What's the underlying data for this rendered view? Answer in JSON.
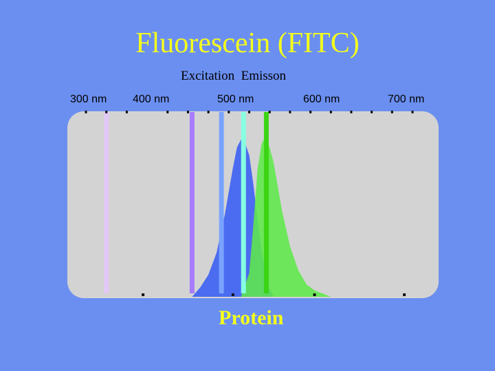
{
  "slide": {
    "title": "Fluorescein (FITC)",
    "subtitle": "Excitation  Emisson",
    "bottom_label": "Protein"
  },
  "colors": {
    "background": "#6b8ff0",
    "title": "#f5ff1a",
    "plot_area": "#d3d3d3",
    "excitation": "#3f63f2",
    "emission": "#5fe84a"
  },
  "chart_data": {
    "type": "area",
    "title": "Fluorescein (FITC)",
    "subtitle": "Excitation  Emisson",
    "xlabel": "",
    "ylabel": "",
    "xlim": [
      300,
      700
    ],
    "ylim": [
      0,
      1
    ],
    "x_ticks": [
      {
        "value": 300,
        "label": "300 nm"
      },
      {
        "value": 400,
        "label": "400 nm"
      },
      {
        "value": 500,
        "label": "500 nm"
      },
      {
        "value": 600,
        "label": "600 nm"
      },
      {
        "value": 700,
        "label": "700 nm"
      }
    ],
    "series": [
      {
        "name": "Excitation",
        "color": "#3f63f2",
        "x": [
          430,
          440,
          450,
          460,
          470,
          480,
          485,
          490,
          494,
          500,
          505,
          510,
          515,
          520,
          525,
          530
        ],
        "y": [
          0.0,
          0.06,
          0.14,
          0.28,
          0.52,
          0.82,
          0.95,
          1.0,
          0.99,
          0.9,
          0.72,
          0.5,
          0.3,
          0.15,
          0.05,
          0.0
        ]
      },
      {
        "name": "Emisson",
        "color": "#5fe84a",
        "x": [
          490,
          500,
          505,
          510,
          515,
          518,
          521,
          525,
          530,
          535,
          540,
          550,
          560,
          570,
          580,
          590,
          600
        ],
        "y": [
          0.0,
          0.15,
          0.45,
          0.8,
          0.97,
          1.0,
          0.99,
          0.95,
          0.85,
          0.7,
          0.55,
          0.32,
          0.17,
          0.08,
          0.04,
          0.02,
          0.0
        ]
      }
    ],
    "laser_lines": [
      {
        "x": 325,
        "color": "#e2c8f6"
      },
      {
        "x": 430,
        "color": "#a77cff"
      },
      {
        "x": 466,
        "color": "#7aa3ff"
      },
      {
        "x": 493,
        "color": "#86ffe2"
      },
      {
        "x": 521,
        "color": "#3bd414"
      }
    ],
    "grid": false,
    "legend": "none"
  }
}
